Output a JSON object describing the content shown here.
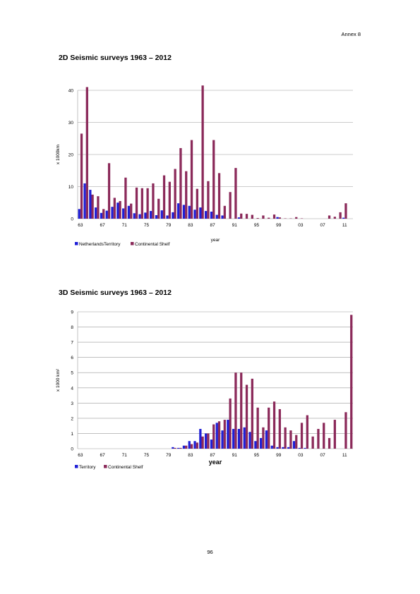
{
  "annex": "Annex 8",
  "page_number": "96",
  "colors": {
    "territory": "#1f1fd6",
    "shelf": "#8b2a5a",
    "grid": "#9a9a9a"
  },
  "sections": [
    {
      "title": "2D Seismic surveys 1963 – 2012"
    },
    {
      "title": "3D Seismic surveys 1963 – 2012"
    }
  ],
  "chart_data": [
    {
      "type": "bar",
      "xlabel": "year",
      "ylabel": "x 1000km",
      "ylim": [
        0,
        40
      ],
      "yticks": [
        0,
        10,
        20,
        30,
        40
      ],
      "grid": true,
      "legend_position": "bottom-left",
      "years": [
        1963,
        1964,
        1965,
        1966,
        1967,
        1968,
        1969,
        1970,
        1971,
        1972,
        1973,
        1974,
        1975,
        1976,
        1977,
        1978,
        1979,
        1980,
        1981,
        1982,
        1983,
        1984,
        1985,
        1986,
        1987,
        1988,
        1989,
        1990,
        1991,
        1992,
        1993,
        1994,
        1995,
        1996,
        1997,
        1998,
        1999,
        2000,
        2001,
        2002,
        2003,
        2004,
        2005,
        2006,
        2007,
        2008,
        2009,
        2010,
        2011,
        2012
      ],
      "x_tick_labels": [
        "63",
        "67",
        "71",
        "75",
        "79",
        "83",
        "87",
        "91",
        "95",
        "99",
        "03",
        "07",
        "11"
      ],
      "series": [
        {
          "name": "NetherlandsTerritory",
          "color": "#1f1fd6",
          "values": [
            3,
            11,
            9,
            3.5,
            1.8,
            2.5,
            3.7,
            5,
            3.2,
            4,
            1.7,
            1.4,
            1.9,
            2.4,
            1.1,
            2.6,
            1,
            2,
            4.8,
            4.3,
            4,
            2.8,
            3.5,
            2.4,
            2.2,
            1.2,
            1,
            0,
            0,
            0.4,
            0,
            0,
            0,
            0,
            0,
            0,
            0.5,
            0,
            0,
            0,
            0,
            0,
            0,
            0,
            0,
            0,
            0,
            0,
            0.3,
            0
          ]
        },
        {
          "name": "Continental Shelf",
          "color": "#8b2a5a",
          "values": [
            26.5,
            41,
            7.5,
            7,
            3,
            17.3,
            6.5,
            5.5,
            12.8,
            4.7,
            9.7,
            9.5,
            9.5,
            11,
            6.2,
            13.5,
            11.5,
            15.5,
            22,
            14.8,
            24.5,
            9.3,
            41.5,
            11.7,
            24.5,
            14.2,
            4,
            8.3,
            15.8,
            1.6,
            1.5,
            1.2,
            0.2,
            1,
            0.3,
            1.3,
            0.4,
            0.1,
            0.1,
            0.5,
            0.1,
            0,
            0,
            0,
            0,
            1,
            0.6,
            2,
            4.8,
            0
          ]
        }
      ]
    },
    {
      "type": "bar",
      "xlabel": "year",
      "ylabel": "x 1000 km²",
      "ylim": [
        0,
        9
      ],
      "yticks": [
        0,
        1,
        2,
        3,
        4,
        5,
        6,
        7,
        8,
        9
      ],
      "grid": true,
      "legend_position": "bottom-left",
      "years": [
        1963,
        1964,
        1965,
        1966,
        1967,
        1968,
        1969,
        1970,
        1971,
        1972,
        1973,
        1974,
        1975,
        1976,
        1977,
        1978,
        1979,
        1980,
        1981,
        1982,
        1983,
        1984,
        1985,
        1986,
        1987,
        1988,
        1989,
        1990,
        1991,
        1992,
        1993,
        1994,
        1995,
        1996,
        1997,
        1998,
        1999,
        2000,
        2001,
        2002,
        2003,
        2004,
        2005,
        2006,
        2007,
        2008,
        2009,
        2010,
        2011,
        2012
      ],
      "x_tick_labels": [
        "63",
        "67",
        "71",
        "75",
        "79",
        "83",
        "87",
        "91",
        "95",
        "99",
        "03",
        "07",
        "11"
      ],
      "series": [
        {
          "name": "Territory",
          "color": "#1f1fd6",
          "values": [
            0,
            0,
            0,
            0,
            0,
            0,
            0,
            0,
            0,
            0,
            0,
            0,
            0,
            0,
            0,
            0,
            0,
            0.1,
            0.05,
            0.2,
            0.5,
            0.5,
            1.3,
            1,
            0.6,
            1.7,
            1.2,
            1.9,
            1.3,
            1.3,
            1.4,
            1.1,
            0.5,
            0.7,
            1.2,
            0.2,
            0.1,
            0.1,
            0.1,
            0.5,
            0.05,
            0.05,
            0,
            0,
            0,
            0,
            0,
            0,
            0,
            0
          ]
        },
        {
          "name": "Continental Shelf",
          "color": "#8b2a5a",
          "values": [
            0,
            0,
            0,
            0,
            0,
            0,
            0,
            0,
            0,
            0,
            0,
            0,
            0,
            0,
            0,
            0,
            0,
            0.05,
            0.05,
            0.2,
            0.3,
            0.4,
            0.8,
            1,
            1.6,
            1.8,
            1.9,
            3.3,
            5,
            5,
            4.2,
            4.6,
            2.7,
            1.4,
            2.7,
            3.1,
            2.6,
            1.4,
            1.2,
            0.9,
            1.7,
            2.2,
            0.8,
            1.3,
            1.7,
            0.7,
            1.9,
            0,
            2.4,
            8.8
          ]
        }
      ]
    }
  ]
}
